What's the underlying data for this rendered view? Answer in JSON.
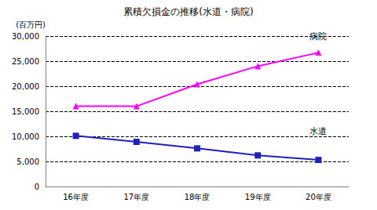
{
  "chart_data": {
    "type": "line",
    "title": "累積欠損金の推移(水道・病院)",
    "y_label": "(百万円)",
    "categories": [
      "16年度",
      "17年度",
      "18年度",
      "19年度",
      "20年度"
    ],
    "series": [
      {
        "name": "病院",
        "color": "#ff00ff",
        "marker": "triangle",
        "values": [
          16000,
          16000,
          20400,
          24000,
          26700
        ]
      },
      {
        "name": "水道",
        "color": "#2020c0",
        "marker": "square",
        "values": [
          10100,
          8900,
          7600,
          6200,
          5300
        ]
      }
    ],
    "ylim": [
      0,
      30000
    ],
    "yticks": [
      0,
      {
        "value": 5000,
        "label": "5,000"
      },
      {
        "value": 10000,
        "label": "10,000"
      },
      {
        "value": 15000,
        "label": "15,000"
      },
      {
        "value": 20000,
        "label": "20,000"
      },
      {
        "value": 25000,
        "label": "25,000"
      },
      {
        "value": 30000,
        "label": "30,000"
      }
    ],
    "grid": true
  }
}
